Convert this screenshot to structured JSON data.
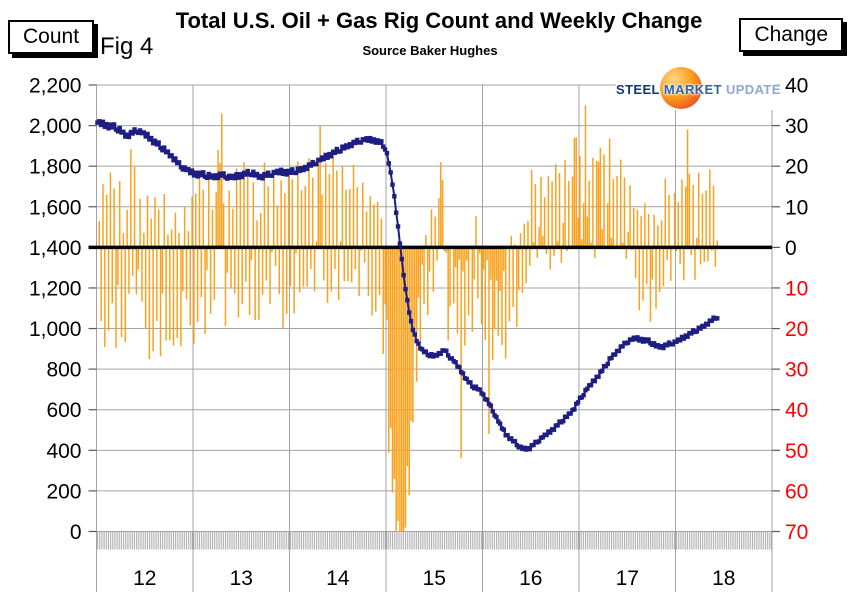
{
  "header": {
    "title": "Total U.S. Oil + Gas Rig Count and Weekly Change",
    "subtitle": "Source Baker Hughes",
    "figure_label": "Fig 4",
    "left_axis_box_label": "Count",
    "right_axis_box_label": "Change"
  },
  "logo": {
    "word1": "STEEL",
    "word2": "MARKET",
    "word3": "UPDATE",
    "ball_color": "#f0750f"
  },
  "chart_data": {
    "type": "combo",
    "title": "Total U.S. Oil + Gas Rig Count and Weekly Change",
    "subtitle": "Source Baker Hughes",
    "grid": true,
    "x_axis": {
      "unit": "year",
      "start": 2012,
      "end": 2018.44,
      "tick_labels": [
        "12",
        "13",
        "14",
        "15",
        "16",
        "17",
        "18"
      ],
      "weekly_minor_ticks": true
    },
    "left_axis": {
      "label": "Count",
      "min": 0,
      "max": 2200,
      "step": 200,
      "ticks": [
        {
          "value": 2200,
          "label": "2,200"
        },
        {
          "value": 2000,
          "label": "2,000"
        },
        {
          "value": 1800,
          "label": "1,800"
        },
        {
          "value": 1600,
          "label": "1,600"
        },
        {
          "value": 1400,
          "label": "1,400"
        },
        {
          "value": 1200,
          "label": "1,200"
        },
        {
          "value": 1000,
          "label": "1,000"
        },
        {
          "value": 800,
          "label": "800"
        },
        {
          "value": 600,
          "label": "600"
        },
        {
          "value": 400,
          "label": "400"
        },
        {
          "value": 200,
          "label": "200"
        },
        {
          "value": 0,
          "label": "0"
        }
      ]
    },
    "right_axis": {
      "label": "Change",
      "min": -70,
      "max": 40,
      "step": 10,
      "positive_color": "#000000",
      "negative_color": "#ff0000",
      "ticks": [
        {
          "value": 40,
          "label": "40",
          "color": "#000000"
        },
        {
          "value": 30,
          "label": "30",
          "color": "#000000"
        },
        {
          "value": 20,
          "label": "20",
          "color": "#000000"
        },
        {
          "value": 10,
          "label": "10",
          "color": "#000000"
        },
        {
          "value": 0,
          "label": "0",
          "color": "#000000"
        },
        {
          "value": -10,
          "label": "10",
          "color": "#ff0000"
        },
        {
          "value": -20,
          "label": "20",
          "color": "#ff0000"
        },
        {
          "value": -30,
          "label": "30",
          "color": "#ff0000"
        },
        {
          "value": -40,
          "label": "40",
          "color": "#ff0000"
        },
        {
          "value": -50,
          "label": "50",
          "color": "#ff0000"
        },
        {
          "value": -60,
          "label": "60",
          "color": "#ff0000"
        },
        {
          "value": -70,
          "label": "70",
          "color": "#ff0000"
        }
      ]
    },
    "baseline": {
      "count_value": 1400,
      "change_value": 0,
      "color": "#000000"
    },
    "colors": {
      "gridline": "#a3a3a3",
      "tick": "#595959",
      "minor_tick_band": "#a9a9a9",
      "line_series": "#1e1e82",
      "bar_series": "#faa21d"
    },
    "series": [
      {
        "name": "Total U.S. oil + gas rig count",
        "type": "line",
        "axis": "left",
        "marker": "square",
        "color": "#1e1e82",
        "anchors_year_count": [
          [
            2012.0,
            2016
          ],
          [
            2012.06,
            2008
          ],
          [
            2012.12,
            2000
          ],
          [
            2012.19,
            1992
          ],
          [
            2012.25,
            1975
          ],
          [
            2012.31,
            1950
          ],
          [
            2012.37,
            1962
          ],
          [
            2012.42,
            1978
          ],
          [
            2012.48,
            1960
          ],
          [
            2012.54,
            1945
          ],
          [
            2012.6,
            1920
          ],
          [
            2012.67,
            1895
          ],
          [
            2012.73,
            1870
          ],
          [
            2012.79,
            1845
          ],
          [
            2012.85,
            1810
          ],
          [
            2012.92,
            1784
          ],
          [
            2013.0,
            1765
          ],
          [
            2013.1,
            1758
          ],
          [
            2013.2,
            1748
          ],
          [
            2013.3,
            1756
          ],
          [
            2013.4,
            1742
          ],
          [
            2013.5,
            1757
          ],
          [
            2013.6,
            1768
          ],
          [
            2013.7,
            1748
          ],
          [
            2013.8,
            1760
          ],
          [
            2013.9,
            1772
          ],
          [
            2014.0,
            1770
          ],
          [
            2014.1,
            1780
          ],
          [
            2014.2,
            1800
          ],
          [
            2014.3,
            1825
          ],
          [
            2014.4,
            1852
          ],
          [
            2014.5,
            1876
          ],
          [
            2014.6,
            1900
          ],
          [
            2014.7,
            1920
          ],
          [
            2014.8,
            1931
          ],
          [
            2014.88,
            1928
          ],
          [
            2014.95,
            1915
          ],
          [
            2015.0,
            1882
          ],
          [
            2015.04,
            1790
          ],
          [
            2015.08,
            1676
          ],
          [
            2015.13,
            1480
          ],
          [
            2015.17,
            1310
          ],
          [
            2015.21,
            1170
          ],
          [
            2015.25,
            1050
          ],
          [
            2015.29,
            975
          ],
          [
            2015.33,
            928
          ],
          [
            2015.38,
            890
          ],
          [
            2015.44,
            872
          ],
          [
            2015.5,
            864
          ],
          [
            2015.56,
            880
          ],
          [
            2015.61,
            894
          ],
          [
            2015.66,
            860
          ],
          [
            2015.72,
            830
          ],
          [
            2015.78,
            790
          ],
          [
            2015.84,
            745
          ],
          [
            2015.9,
            715
          ],
          [
            2015.96,
            702
          ],
          [
            2016.0,
            680
          ],
          [
            2016.08,
            620
          ],
          [
            2016.16,
            545
          ],
          [
            2016.24,
            480
          ],
          [
            2016.32,
            445
          ],
          [
            2016.4,
            410
          ],
          [
            2016.48,
            408
          ],
          [
            2016.56,
            440
          ],
          [
            2016.64,
            470
          ],
          [
            2016.72,
            500
          ],
          [
            2016.8,
            535
          ],
          [
            2016.88,
            570
          ],
          [
            2016.94,
            600
          ],
          [
            2017.0,
            645
          ],
          [
            2017.08,
            700
          ],
          [
            2017.16,
            745
          ],
          [
            2017.25,
            800
          ],
          [
            2017.33,
            855
          ],
          [
            2017.42,
            900
          ],
          [
            2017.5,
            935
          ],
          [
            2017.58,
            952
          ],
          [
            2017.65,
            945
          ],
          [
            2017.72,
            938
          ],
          [
            2017.8,
            915
          ],
          [
            2017.87,
            910
          ],
          [
            2017.94,
            925
          ],
          [
            2018.0,
            932
          ],
          [
            2018.08,
            955
          ],
          [
            2018.17,
            980
          ],
          [
            2018.25,
            1000
          ],
          [
            2018.33,
            1025
          ],
          [
            2018.42,
            1055
          ],
          [
            2018.44,
            1058
          ]
        ]
      },
      {
        "name": "Weekly change",
        "type": "bar",
        "axis": "right",
        "color": "#faa21d",
        "derivation": "week-over-week difference of rig count, clipped to right-axis range",
        "clip": [
          -70,
          40
        ],
        "noise_pattern": [
          0,
          7,
          -5,
          9,
          -8,
          4,
          -10,
          6,
          -3,
          10,
          -6,
          -9,
          8,
          -4,
          5,
          -7,
          3,
          -9,
          7,
          -2,
          9,
          -5,
          -8,
          6
        ],
        "noise_amplitude_anchors": [
          [
            2012.0,
            1.3
          ],
          [
            2014.5,
            1.1
          ],
          [
            2014.95,
            0.9
          ],
          [
            2015.03,
            0.45
          ],
          [
            2015.45,
            0.7
          ],
          [
            2016.45,
            0.7
          ],
          [
            2017.0,
            0.8
          ],
          [
            2018.44,
            0.8
          ]
        ],
        "notable_bars_year_value": [
          [
            2013.26,
            24
          ],
          [
            2013.3,
            33
          ],
          [
            2014.21,
            22
          ],
          [
            2014.32,
            30
          ],
          [
            2014.55,
            20
          ],
          [
            2015.56,
            21
          ],
          [
            2015.77,
            -52
          ],
          [
            2016.06,
            -46
          ],
          [
            2016.95,
            27
          ],
          [
            2017.07,
            35
          ],
          [
            2017.2,
            21
          ],
          [
            2018.12,
            29
          ]
        ]
      }
    ]
  }
}
